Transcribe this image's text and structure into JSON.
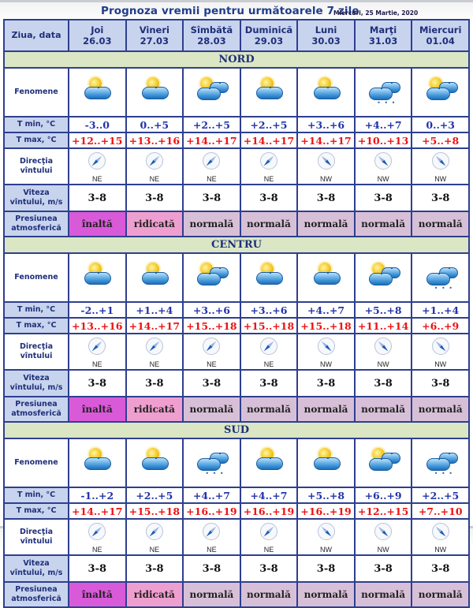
{
  "header": {
    "title": "Prognoza vremii pentru următoarele 7 zile",
    "date": "Miercuri, 25 Martie, 2020"
  },
  "columns": {
    "first": "Ziua, data",
    "days": [
      {
        "day": "Joi",
        "date": "26.03"
      },
      {
        "day": "Vineri",
        "date": "27.03"
      },
      {
        "day": "Sîmbătă",
        "date": "28.03"
      },
      {
        "day": "Duminică",
        "date": "29.03"
      },
      {
        "day": "Luni",
        "date": "30.03"
      },
      {
        "day": "Marţi",
        "date": "31.03"
      },
      {
        "day": "Miercuri",
        "date": "01.04"
      }
    ]
  },
  "row_labels": {
    "fenomene": "Fenomene",
    "tmin": "T min, °C",
    "tmax": "T max, °C",
    "dir_1": "Direcţia",
    "dir_2": "vîntului",
    "vit_1": "Viteza",
    "vit_2": "vîntului, m/s",
    "pres_1": "Presiunea",
    "pres_2": "atmosferică"
  },
  "colors": {
    "header_bg": "#c8d4ee",
    "region_bg": "#dbe6c4",
    "tmin_text": "#2233aa",
    "tmax_text": "#ee1111",
    "pressure_inalta": "#d95ad9",
    "pressure_ridicata": "#ef9fcf",
    "pressure_normala": "#d7c0d7",
    "border": "#2e3f8f"
  },
  "regions": [
    {
      "name": "NORD",
      "icons": [
        "sun-cloud-icon",
        "sun-cloud-icon",
        "sun-clouds-icon",
        "sun-cloud-icon",
        "sun-cloud-icon",
        "clouds-light-rain-icon",
        "sun-clouds-icon"
      ],
      "tmin": [
        "-3..0",
        "0..+5",
        "+2..+5",
        "+2..+5",
        "+3..+6",
        "+4..+7",
        "0..+3"
      ],
      "tmax": [
        "+12..+15",
        "+13..+16",
        "+14..+17",
        "+14..+17",
        "+14..+17",
        "+10..+13",
        "+5..+8"
      ],
      "wind_dir": [
        "NE",
        "NE",
        "NE",
        "NE",
        "NW",
        "NW",
        "NW"
      ],
      "wind_speed": [
        "3-8",
        "3-8",
        "3-8",
        "3-8",
        "3-8",
        "3-8",
        "3-8"
      ],
      "pressure": [
        "înaltă",
        "ridicată",
        "normală",
        "normală",
        "normală",
        "normală",
        "normală"
      ]
    },
    {
      "name": "CENTRU",
      "icons": [
        "sun-cloud-icon",
        "sun-cloud-icon",
        "sun-clouds-icon",
        "sun-cloud-icon",
        "sun-cloud-icon",
        "sun-clouds-icon",
        "clouds-light-rain-icon"
      ],
      "tmin": [
        "-2..+1",
        "+1..+4",
        "+3..+6",
        "+3..+6",
        "+4..+7",
        "+5..+8",
        "+1..+4"
      ],
      "tmax": [
        "+13..+16",
        "+14..+17",
        "+15..+18",
        "+15..+18",
        "+15..+18",
        "+11..+14",
        "+6..+9"
      ],
      "wind_dir": [
        "NE",
        "NE",
        "NE",
        "NE",
        "NW",
        "NW",
        "NW"
      ],
      "wind_speed": [
        "3-8",
        "3-8",
        "3-8",
        "3-8",
        "3-8",
        "3-8",
        "3-8"
      ],
      "pressure": [
        "înaltă",
        "ridicată",
        "normală",
        "normală",
        "normală",
        "normală",
        "normală"
      ]
    },
    {
      "name": "SUD",
      "icons": [
        "sun-cloud-icon",
        "sun-cloud-icon",
        "clouds-light-rain-icon",
        "sun-cloud-icon",
        "sun-cloud-icon",
        "sun-clouds-icon",
        "clouds-light-rain-icon"
      ],
      "tmin": [
        "-1..+2",
        "+2..+5",
        "+4..+7",
        "+4..+7",
        "+5..+8",
        "+6..+9",
        "+2..+5"
      ],
      "tmax": [
        "+14..+17",
        "+15..+18",
        "+16..+19",
        "+16..+19",
        "+16..+19",
        "+12..+15",
        "+7..+10"
      ],
      "wind_dir": [
        "NE",
        "NE",
        "NE",
        "NE",
        "NW",
        "NW",
        "NW"
      ],
      "wind_speed": [
        "3-8",
        "3-8",
        "3-8",
        "3-8",
        "3-8",
        "3-8",
        "3-8"
      ],
      "pressure": [
        "înaltă",
        "ridicată",
        "normală",
        "normală",
        "normală",
        "normală",
        "normală"
      ]
    }
  ]
}
